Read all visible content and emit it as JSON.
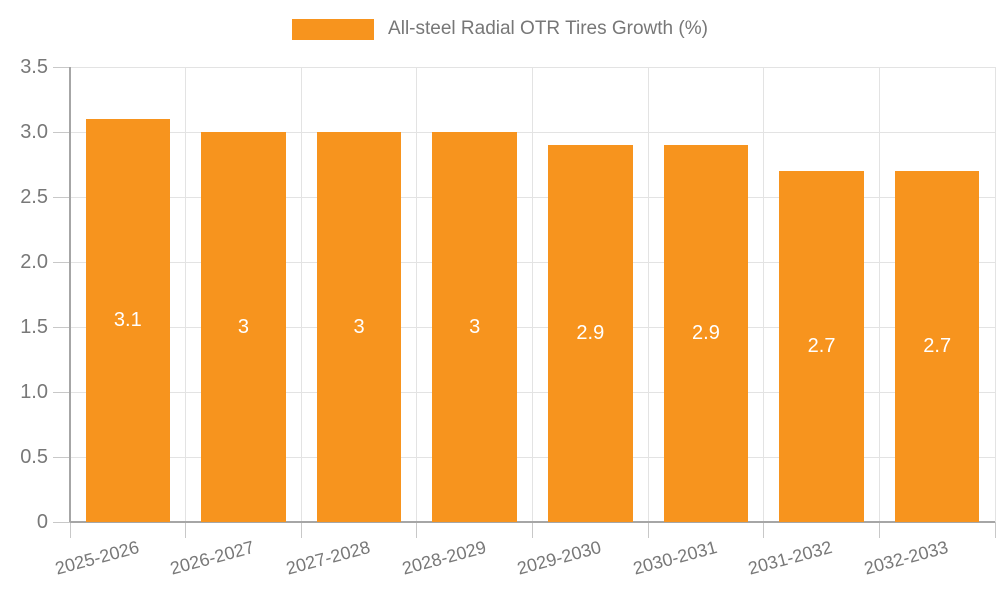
{
  "chart_data": {
    "type": "bar",
    "legend": "All-steel Radial OTR Tires Growth (%)",
    "categories": [
      "2025-2026",
      "2026-2027",
      "2027-2028",
      "2028-2029",
      "2029-2030",
      "2030-2031",
      "2031-2032",
      "2032-2033"
    ],
    "values": [
      3.1,
      3.0,
      3.0,
      3.0,
      2.9,
      2.9,
      2.7,
      2.7
    ],
    "value_labels": [
      "3.1",
      "3",
      "3",
      "3",
      "2.9",
      "2.9",
      "2.7",
      "2.7"
    ],
    "ylim": [
      0,
      3.5
    ],
    "ytick_step": 0.5,
    "ytick_labels": [
      "0",
      "0.5",
      "1.0",
      "1.5",
      "2.0",
      "2.5",
      "3.0",
      "3.5"
    ],
    "grid": true,
    "legend_position": "top-center",
    "x_label_rotation_deg": -15,
    "colors": {
      "bar": "#F7941E",
      "bar_value_text": "#FFFFFF",
      "axis_text": "#787878",
      "legend_text": "#777777",
      "grid_line": "#E3E3E3",
      "axis_line": "#A6A6A6",
      "tick_line": "#C8C8C8",
      "background": "#FFFFFF"
    }
  }
}
